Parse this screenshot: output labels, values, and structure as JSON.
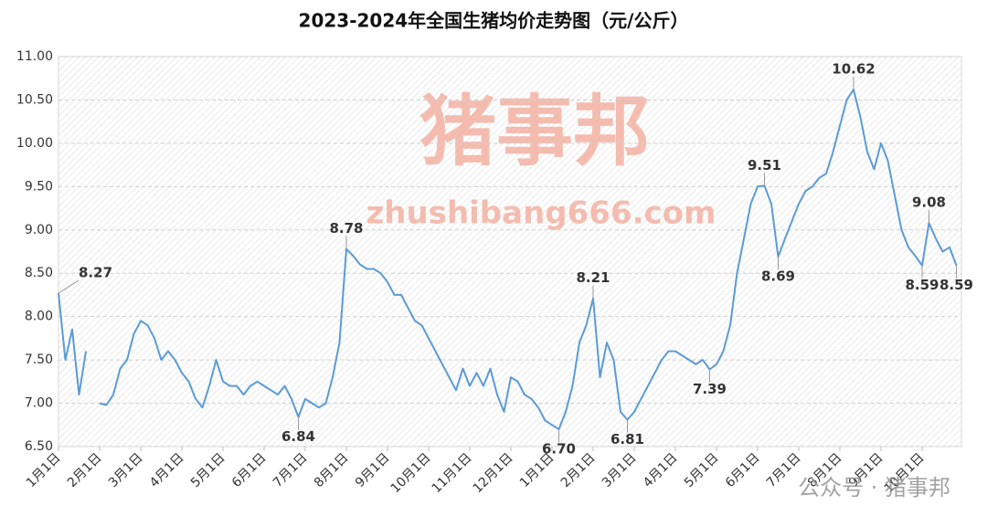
{
  "chart_data": {
    "type": "line",
    "title": "2023-2024年全国生猪均价走势图（元/公斤）",
    "watermark": {
      "logo": "猪事邦",
      "url": "zhushibang666.com",
      "footer": "公众号 · 猪事邦"
    },
    "categories": [
      "1月1日",
      null,
      null,
      null,
      null,
      null,
      "2月1日",
      null,
      null,
      null,
      null,
      null,
      "3月1日",
      null,
      null,
      null,
      null,
      null,
      "4月1日",
      null,
      null,
      null,
      null,
      null,
      "5月1日",
      null,
      null,
      null,
      null,
      null,
      "6月1日",
      null,
      null,
      null,
      null,
      null,
      "7月1日",
      null,
      null,
      null,
      null,
      null,
      "8月1日",
      null,
      null,
      null,
      null,
      null,
      "9月1日",
      null,
      null,
      null,
      null,
      null,
      "10月1日",
      null,
      null,
      null,
      null,
      null,
      "11月1日",
      null,
      null,
      null,
      null,
      null,
      "12月1日",
      null,
      null,
      null,
      null,
      null,
      "1月1日",
      null,
      null,
      null,
      null,
      null,
      "2月1日",
      null,
      null,
      null,
      null,
      null,
      "3月1日",
      null,
      null,
      null,
      null,
      null,
      "4月1日",
      null,
      null,
      null,
      null,
      null,
      "5月1日",
      null,
      null,
      null,
      null,
      null,
      "6月1日",
      null,
      null,
      null,
      null,
      null,
      "7月1日",
      null,
      null,
      null,
      null,
      null,
      "8月1日",
      null,
      null,
      null,
      null,
      null,
      "9月1日",
      null,
      null,
      null,
      null,
      null,
      "10月1日",
      null,
      null,
      null,
      null,
      null
    ],
    "series": [
      {
        "name": "全国生猪均价",
        "color": "#5b9bd5",
        "values": [
          8.27,
          7.5,
          7.85,
          7.1,
          7.6,
          null,
          7.0,
          6.98,
          7.1,
          7.4,
          7.5,
          7.8,
          7.95,
          7.9,
          7.75,
          7.5,
          7.6,
          7.5,
          7.35,
          7.25,
          7.05,
          6.95,
          7.2,
          7.5,
          7.25,
          7.2,
          7.2,
          7.1,
          7.2,
          7.25,
          7.2,
          7.15,
          7.1,
          7.2,
          7.05,
          6.84,
          7.05,
          7.0,
          6.95,
          7.0,
          7.3,
          7.7,
          8.78,
          8.7,
          8.6,
          8.55,
          8.55,
          8.5,
          8.4,
          8.25,
          8.25,
          8.1,
          7.95,
          7.9,
          7.75,
          7.6,
          7.45,
          7.3,
          7.15,
          7.4,
          7.2,
          7.35,
          7.2,
          7.4,
          7.1,
          6.9,
          7.3,
          7.25,
          7.1,
          7.05,
          6.95,
          6.8,
          6.75,
          6.7,
          6.9,
          7.2,
          7.7,
          7.9,
          8.21,
          7.3,
          7.7,
          7.5,
          6.9,
          6.81,
          6.9,
          7.05,
          7.2,
          7.35,
          7.5,
          7.6,
          7.6,
          7.55,
          7.5,
          7.45,
          7.5,
          7.39,
          7.45,
          7.6,
          7.9,
          8.5,
          8.9,
          9.3,
          9.5,
          9.51,
          9.3,
          8.69,
          8.9,
          9.1,
          9.3,
          9.45,
          9.5,
          9.6,
          9.65,
          9.9,
          10.2,
          10.5,
          10.62,
          10.3,
          9.9,
          9.7,
          10.0,
          9.8,
          9.4,
          9.0,
          8.8,
          8.7,
          8.59,
          9.08,
          8.9,
          8.75,
          8.8,
          8.59
        ],
        "value_labels": [
          "8.27",
          null,
          null,
          null,
          null,
          null,
          null,
          null,
          null,
          null,
          null,
          null,
          null,
          null,
          null,
          null,
          null,
          null,
          null,
          null,
          null,
          null,
          null,
          null,
          null,
          null,
          null,
          null,
          null,
          null,
          null,
          null,
          null,
          null,
          null,
          "6.84",
          null,
          null,
          null,
          null,
          null,
          null,
          "8.78",
          null,
          null,
          null,
          null,
          null,
          null,
          null,
          null,
          null,
          null,
          null,
          null,
          null,
          null,
          null,
          null,
          null,
          null,
          null,
          null,
          null,
          null,
          null,
          null,
          null,
          null,
          null,
          null,
          null,
          null,
          "6.70",
          null,
          null,
          null,
          null,
          "8.21",
          null,
          null,
          null,
          null,
          "6.81",
          null,
          null,
          null,
          null,
          null,
          null,
          null,
          null,
          null,
          null,
          null,
          "7.39",
          null,
          null,
          null,
          null,
          null,
          null,
          null,
          "9.51",
          null,
          "8.69",
          null,
          null,
          null,
          null,
          null,
          null,
          null,
          null,
          null,
          null,
          "10.62",
          null,
          null,
          null,
          null,
          null,
          null,
          null,
          null,
          null,
          "8.59",
          "9.08",
          null,
          null,
          null,
          "8.59"
        ]
      }
    ],
    "ylim": [
      6.5,
      11
    ],
    "yticks": [
      {
        "value": 6.5,
        "label": "6.50"
      },
      {
        "value": 7,
        "label": "7.00"
      },
      {
        "value": 7.5,
        "label": "7.50"
      },
      {
        "value": 8,
        "label": "8.00"
      },
      {
        "value": 8.5,
        "label": "8.50"
      },
      {
        "value": 9,
        "label": "9.00"
      },
      {
        "value": 9.5,
        "label": "9.50"
      },
      {
        "value": 10,
        "label": "10.00"
      },
      {
        "value": 10.5,
        "label": "10.50"
      },
      {
        "value": 11,
        "label": "11.00"
      }
    ],
    "grid": true
  }
}
